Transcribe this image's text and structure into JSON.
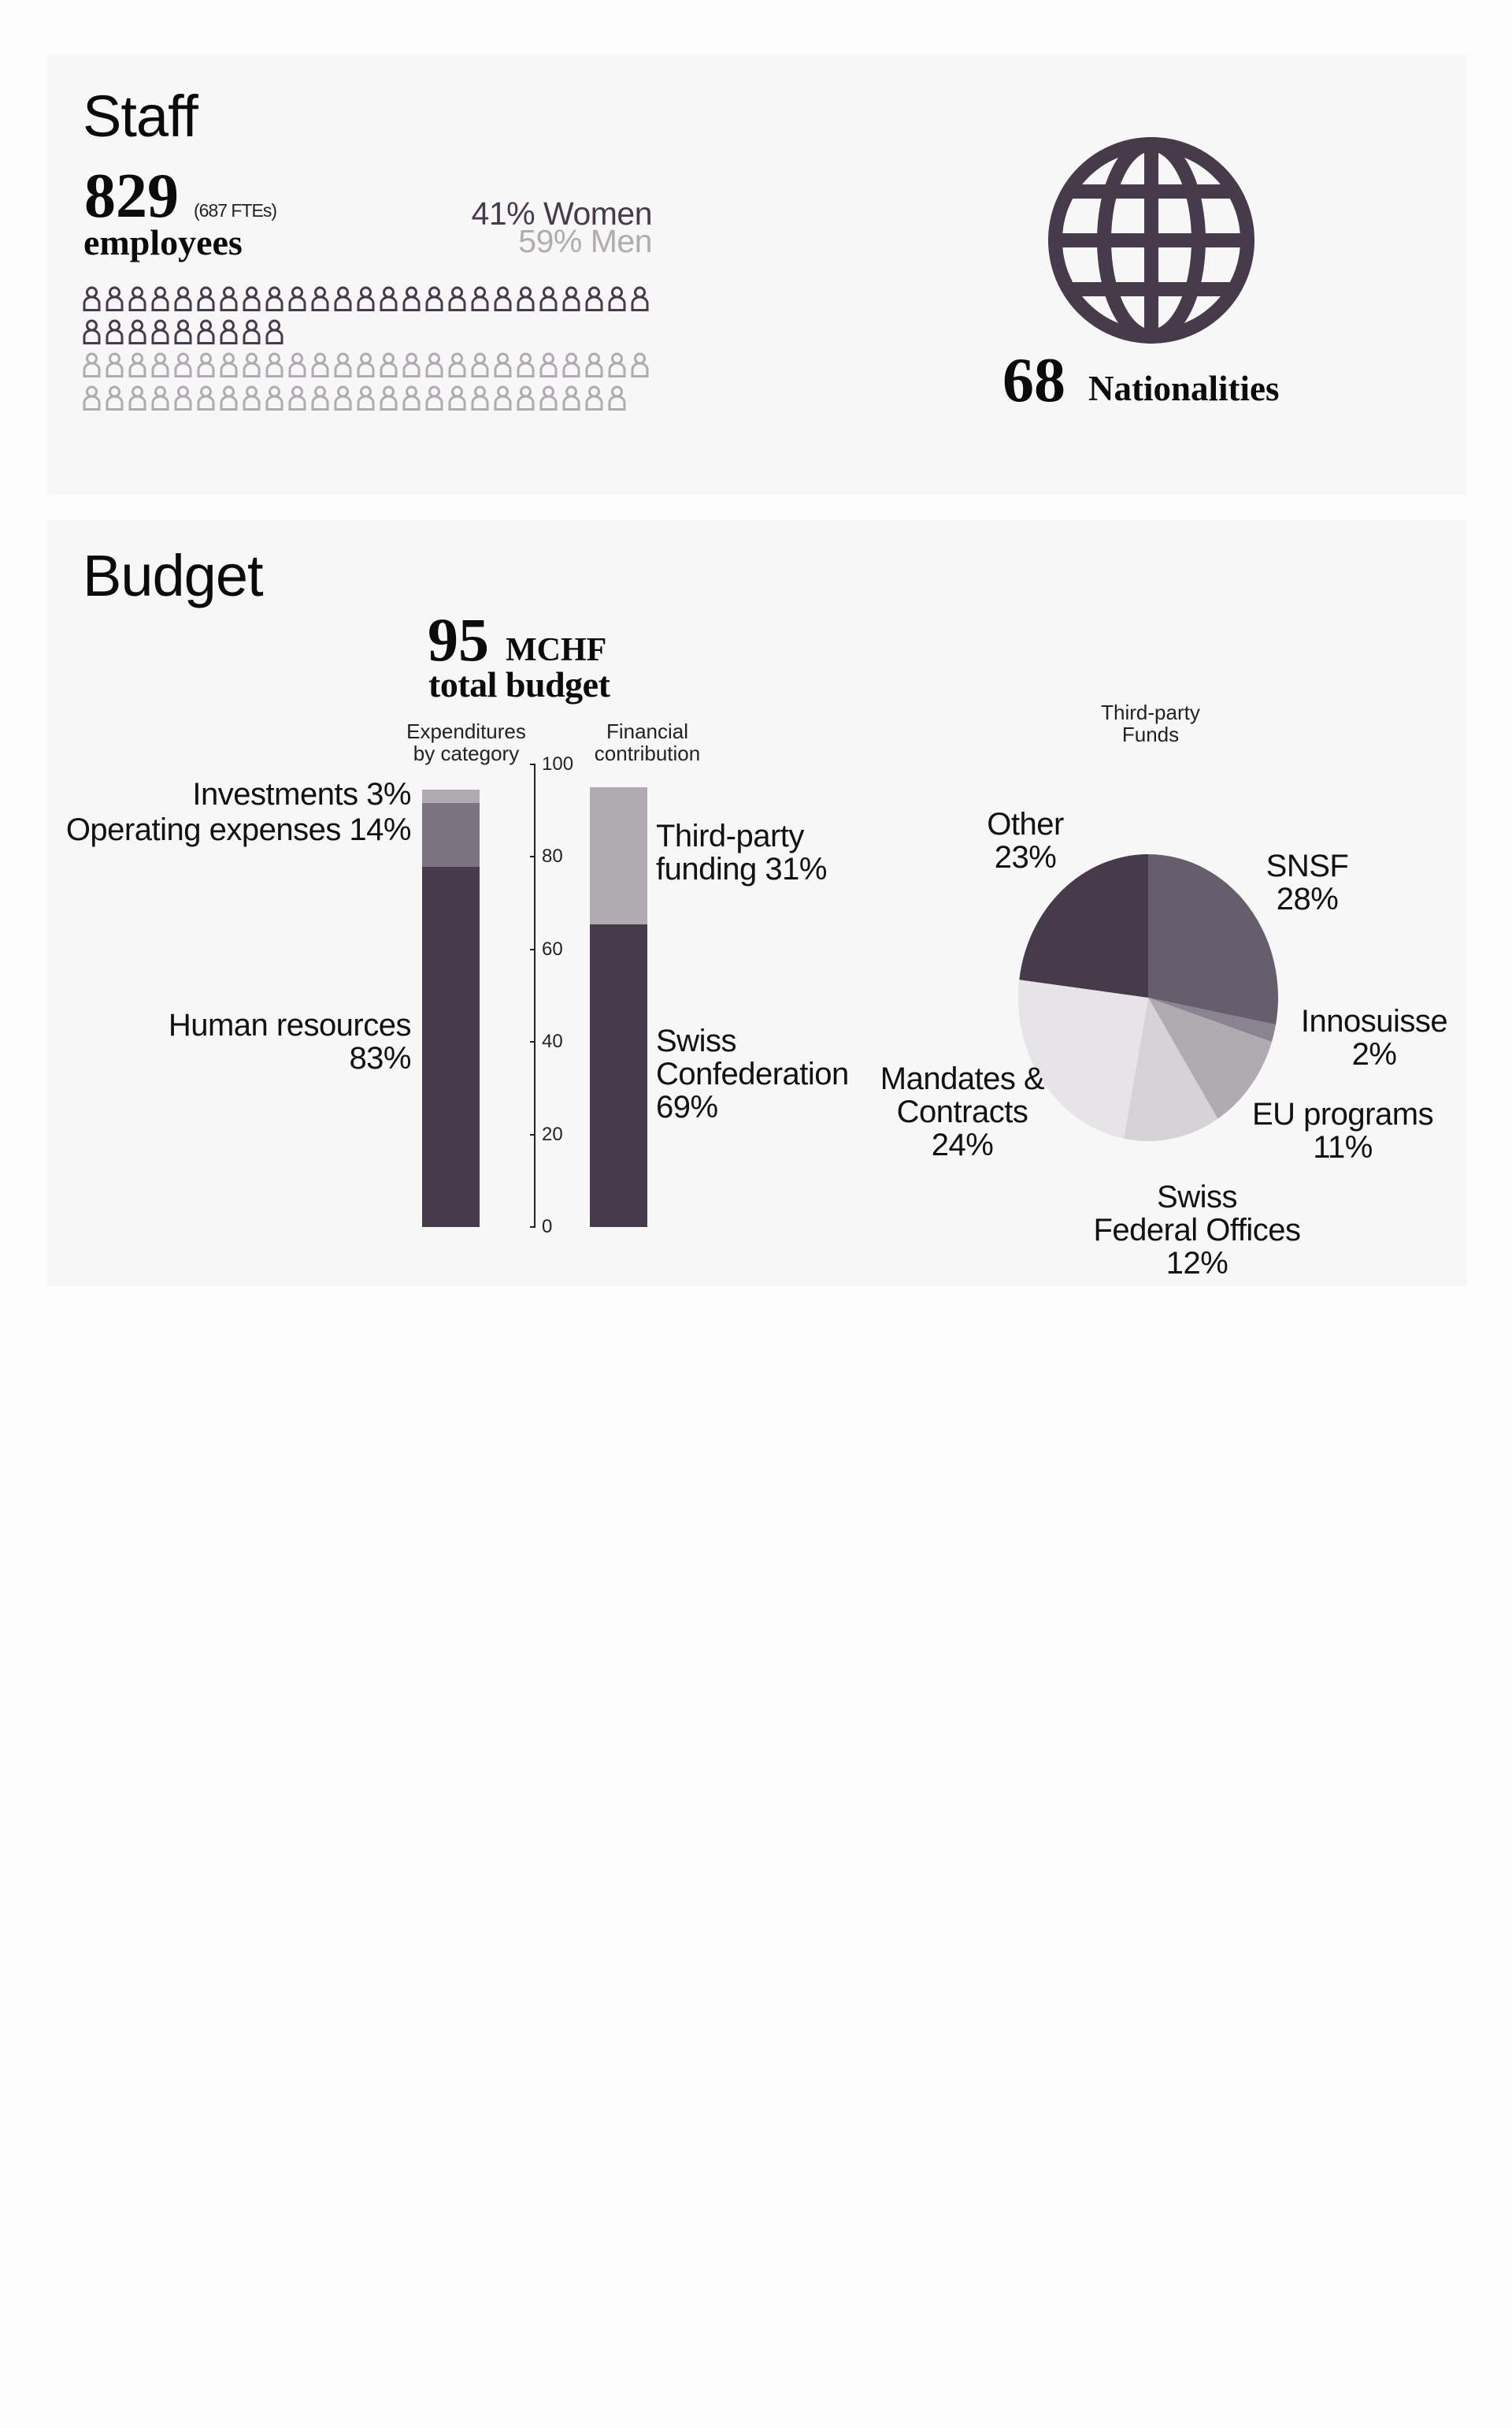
{
  "staff": {
    "title": "Staff",
    "employees_count": "829",
    "fte_note": "(687 FTEs)",
    "employees_label": "employees",
    "women_label": "41% Women",
    "men_label": "59% Men",
    "people_icon": "person-outline-icon",
    "pictogram_rows": [
      {
        "count": 25,
        "group": "women"
      },
      {
        "count": 9,
        "group": "women"
      },
      {
        "count": 25,
        "group": "men"
      },
      {
        "count": 24,
        "group": "men"
      }
    ],
    "nationalities_count": "68",
    "nationalities_label": "Nationalities",
    "globe_icon": "globe-icon"
  },
  "budget": {
    "title": "Budget",
    "total_value": "95",
    "total_unit": "MCHF",
    "total_label": "total budget",
    "expenditures_caption_line1": "Expenditures",
    "expenditures_caption_line2": "by category",
    "financial_caption_line1": "Financial",
    "financial_caption_line2": "contribution",
    "pie_caption_line1": "Third-party",
    "pie_caption_line2": "Funds",
    "labels": {
      "investments": "Investments 3%",
      "operating": "Operating expenses 14%",
      "hr_line1": "Human resources",
      "hr_line2": "83%",
      "third_party_line1": "Third-party",
      "third_party_line2": "funding 31%",
      "swiss_conf_line1": "Swiss",
      "swiss_conf_line2": "Confederation",
      "swiss_conf_line3": "69%",
      "other_line1": "Other",
      "other_line2": "23%",
      "snsf_line1": "SNSF",
      "snsf_line2": "28%",
      "innosuisse_line1": "Innosuisse",
      "innosuisse_line2": "2%",
      "eu_line1": "EU programs",
      "eu_line2": "11%",
      "sfo_line1": "Swiss",
      "sfo_line2": "Federal Offices",
      "sfo_line3": "12%",
      "mandates_line1": "Mandates &",
      "mandates_line2": "Contracts",
      "mandates_line3": "24%"
    },
    "axis_ticks": [
      "100",
      "80",
      "60",
      "40",
      "20",
      "0"
    ]
  },
  "colors": {
    "dark": "#463a4b",
    "mid": "#7b7380",
    "light": "#b0abb1",
    "card_bg": "#f7f7f7"
  },
  "chart_data": [
    {
      "type": "bar",
      "title": "Expenditures by category",
      "stacked": true,
      "unit": "MCHF",
      "ylim": [
        0,
        100
      ],
      "yticks": [
        0,
        20,
        40,
        60,
        80,
        100
      ],
      "total": 95,
      "series": [
        {
          "name": "Human resources",
          "percent": 83,
          "value": 78.85,
          "color": "#463a4b"
        },
        {
          "name": "Operating expenses",
          "percent": 14,
          "value": 13.3,
          "color": "#7b7380"
        },
        {
          "name": "Investments",
          "percent": 3,
          "value": 2.85,
          "color": "#b0abb1"
        }
      ]
    },
    {
      "type": "bar",
      "title": "Financial contribution",
      "stacked": true,
      "unit": "MCHF",
      "ylim": [
        0,
        100
      ],
      "total": 95,
      "series": [
        {
          "name": "Swiss Confederation",
          "percent": 69,
          "value": 65.55,
          "color": "#463a4b"
        },
        {
          "name": "Third-party funding",
          "percent": 31,
          "value": 29.45,
          "color": "#b0abb1"
        }
      ]
    },
    {
      "type": "pie",
      "title": "Third-party Funds",
      "categories": [
        "SNSF",
        "Innosuisse",
        "EU programs",
        "Swiss Federal Offices",
        "Mandates & Contracts",
        "Other"
      ],
      "values": [
        28,
        2,
        11,
        12,
        24,
        23
      ],
      "colors": [
        "#665e6c",
        "#8a8390",
        "#b0abb1",
        "#d6d2d6",
        "#e6e4e7",
        "#463a4b"
      ]
    },
    {
      "type": "table",
      "title": "Staff",
      "rows": [
        {
          "label": "Employees",
          "value": 829
        },
        {
          "label": "FTEs",
          "value": 687
        },
        {
          "label": "Women %",
          "value": 41
        },
        {
          "label": "Men %",
          "value": 59
        },
        {
          "label": "Nationalities",
          "value": 68
        }
      ]
    }
  ]
}
